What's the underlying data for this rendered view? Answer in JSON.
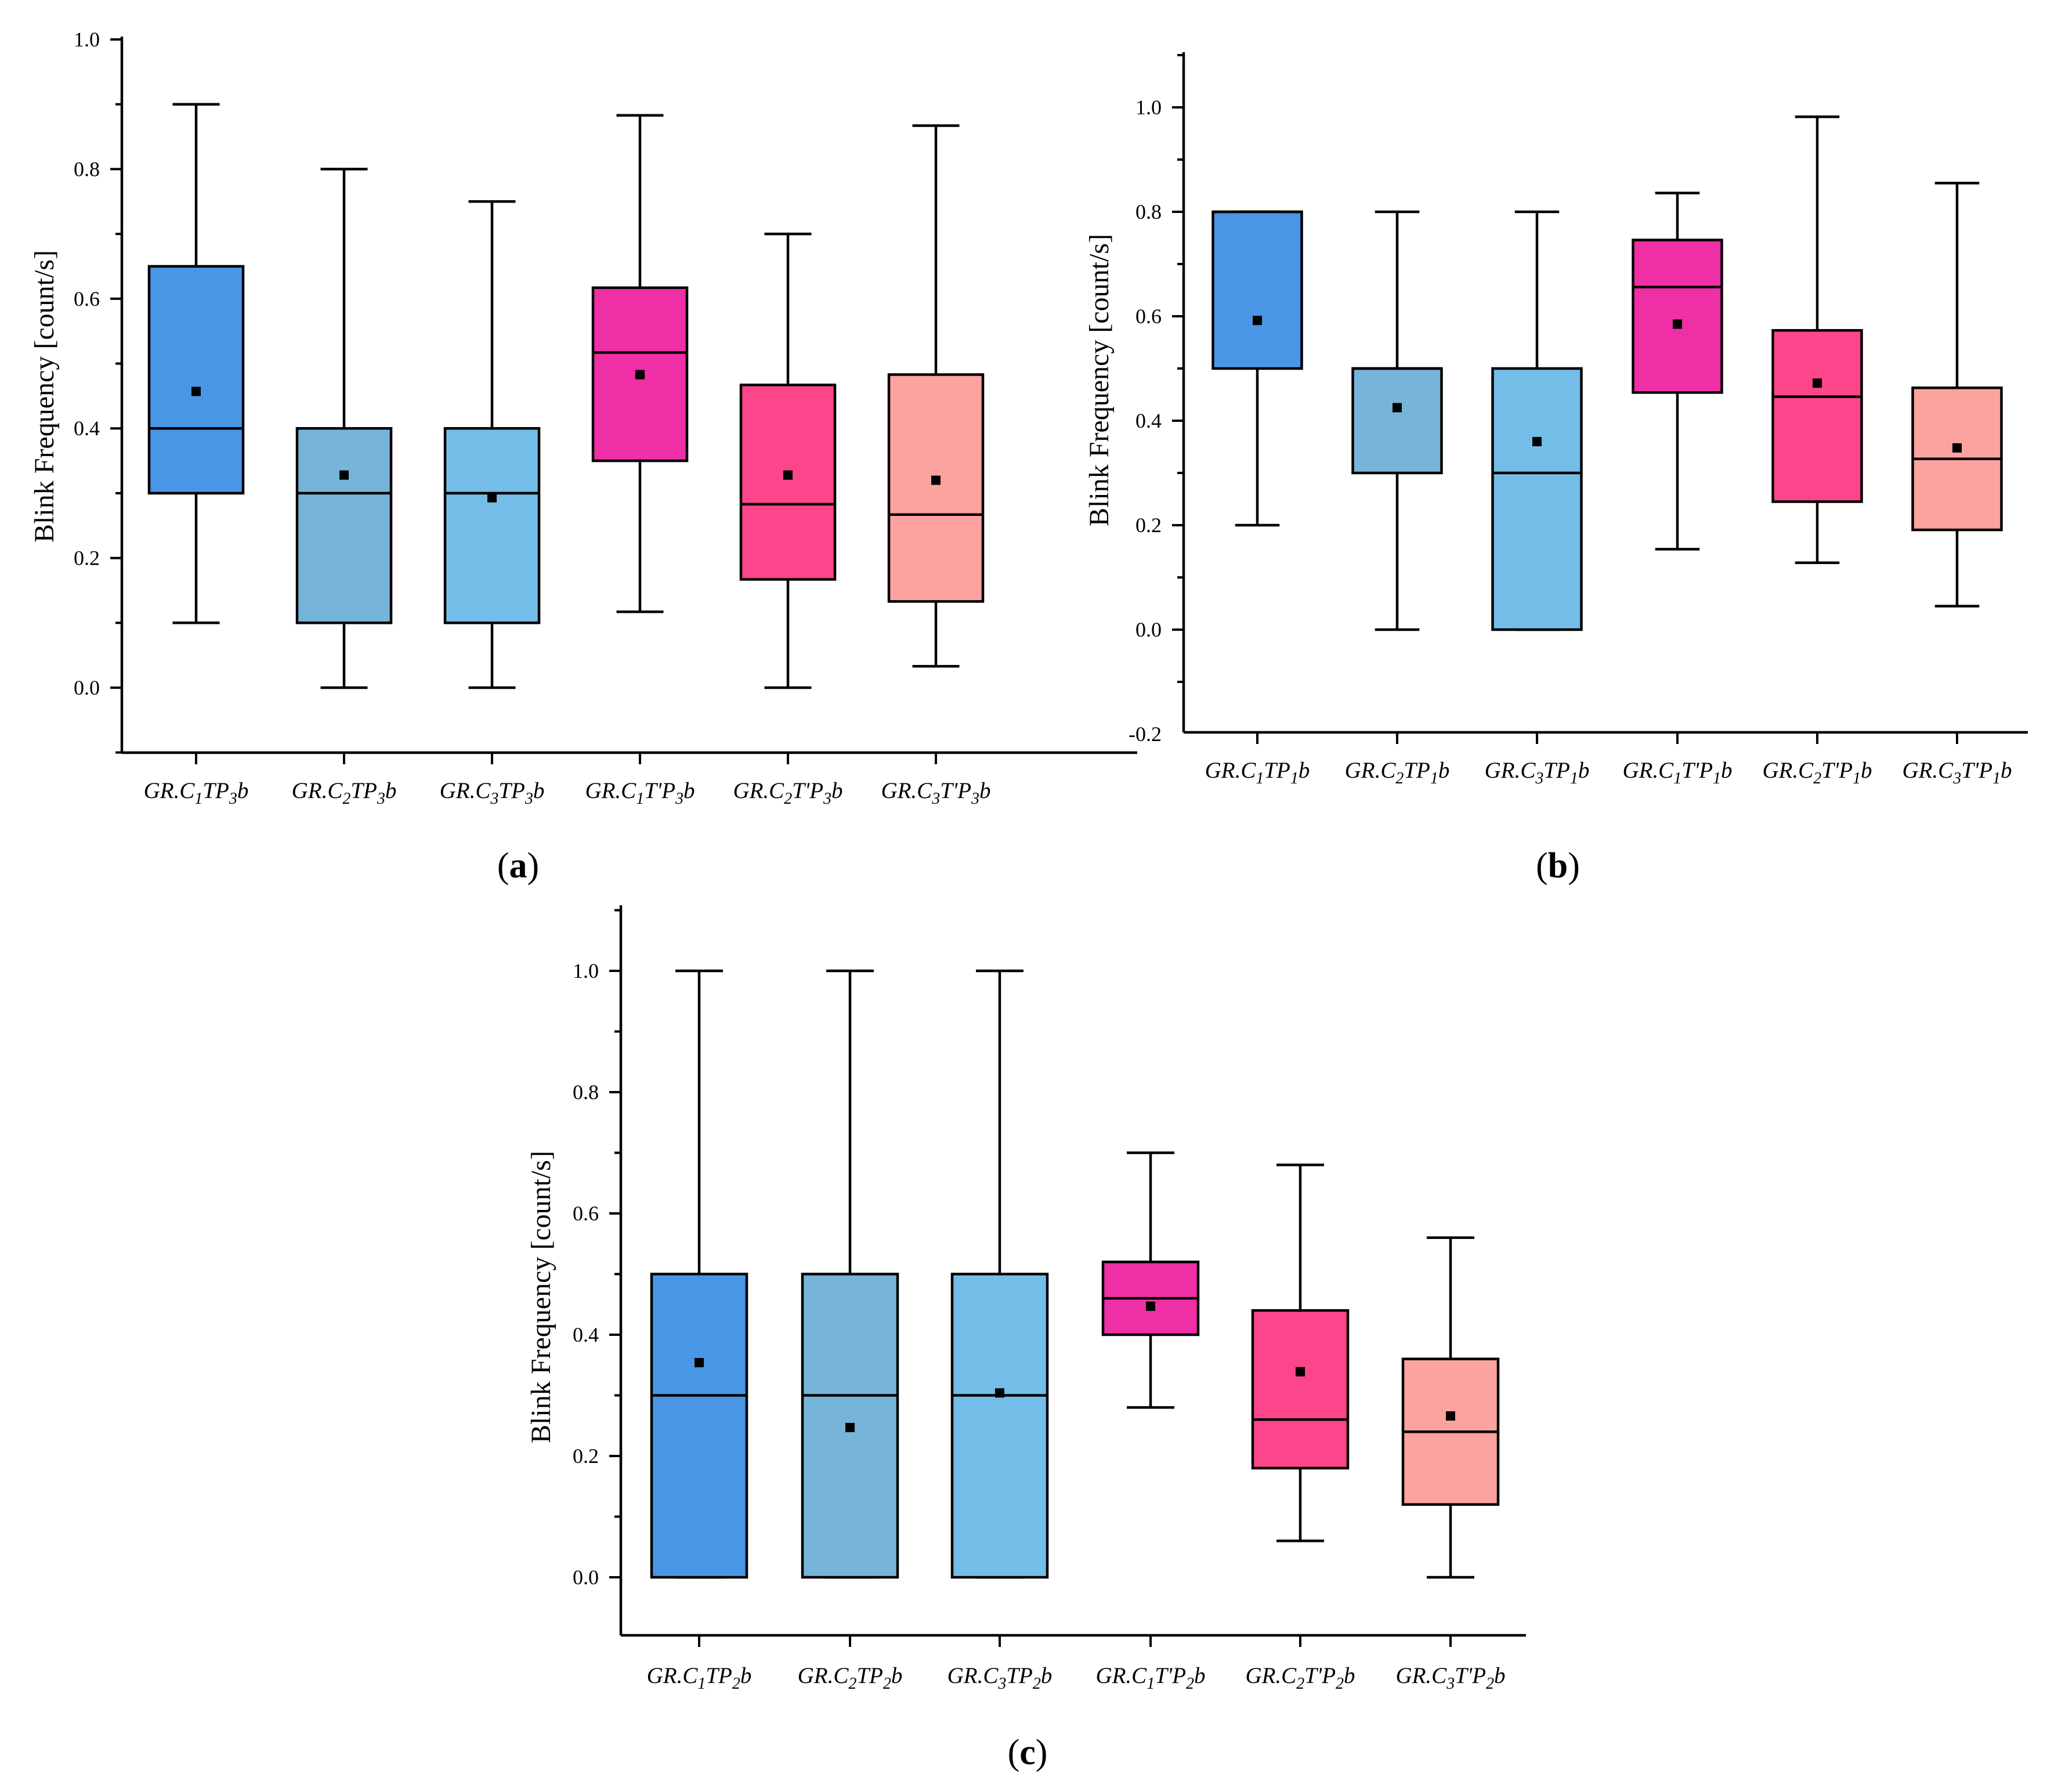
{
  "chart_data": [
    {
      "panel": "a",
      "type": "box",
      "ylabel": "Blink Frequency [count/s]",
      "ylim": [
        -0.1,
        1.0
      ],
      "yticks": [
        "0.0",
        "0.2",
        "0.4",
        "0.6",
        "0.8",
        "1.0"
      ],
      "ytick_values": [
        0.0,
        0.2,
        0.4,
        0.6,
        0.8,
        1.0
      ],
      "categories": [
        {
          "base": "GR.C",
          "sub1": "1",
          "mid": "TP",
          "sub2": "3",
          "end": "b"
        },
        {
          "base": "GR.C",
          "sub1": "2",
          "mid": "TP",
          "sub2": "3",
          "end": "b"
        },
        {
          "base": "GR.C",
          "sub1": "3",
          "mid": "TP",
          "sub2": "3",
          "end": "b"
        },
        {
          "base": "GR.C",
          "sub1": "1",
          "mid": "T'P",
          "sub2": "3",
          "end": "b"
        },
        {
          "base": "GR.C",
          "sub1": "2",
          "mid": "T'P",
          "sub2": "3",
          "end": "b"
        },
        {
          "base": "GR.C",
          "sub1": "3",
          "mid": "T'P",
          "sub2": "3",
          "end": "b"
        }
      ],
      "boxes": [
        {
          "min": 0.1,
          "q1": 0.3,
          "median": 0.4,
          "q3": 0.65,
          "max": 0.9,
          "mean": 0.457,
          "color": "#4a96e6"
        },
        {
          "min": 0.0,
          "q1": 0.1,
          "median": 0.3,
          "q3": 0.4,
          "max": 0.8,
          "mean": 0.328,
          "color": "#77b4d9"
        },
        {
          "min": 0.0,
          "q1": 0.1,
          "median": 0.3,
          "q3": 0.4,
          "max": 0.75,
          "mean": 0.293,
          "color": "#73bde8"
        },
        {
          "min": 0.117,
          "q1": 0.35,
          "median": 0.517,
          "q3": 0.617,
          "max": 0.883,
          "mean": 0.483,
          "color": "#ee2fa6"
        },
        {
          "min": 0.0,
          "q1": 0.167,
          "median": 0.283,
          "q3": 0.467,
          "max": 0.7,
          "mean": 0.328,
          "color": "#fc458a"
        },
        {
          "min": 0.033,
          "q1": 0.133,
          "median": 0.267,
          "q3": 0.483,
          "max": 0.867,
          "mean": 0.32,
          "color": "#fda39f"
        }
      ]
    },
    {
      "panel": "b",
      "type": "box",
      "ylabel": "Blink Frequency [count/s]",
      "ylim": [
        -0.2,
        1.1
      ],
      "yticks": [
        "-0.2",
        "0.0",
        "0.2",
        "0.4",
        "0.6",
        "0.8",
        "1.0"
      ],
      "ytick_values": [
        -0.2,
        0.0,
        0.2,
        0.4,
        0.6,
        0.8,
        1.0
      ],
      "categories": [
        {
          "base": "GR.C",
          "sub1": "1",
          "mid": "TP",
          "sub2": "1",
          "end": "b"
        },
        {
          "base": "GR.C",
          "sub1": "2",
          "mid": "TP",
          "sub2": "1",
          "end": "b"
        },
        {
          "base": "GR.C",
          "sub1": "3",
          "mid": "TP",
          "sub2": "1",
          "end": "b"
        },
        {
          "base": "GR.C",
          "sub1": "1",
          "mid": "T'P",
          "sub2": "1",
          "end": "b"
        },
        {
          "base": "GR.C",
          "sub1": "2",
          "mid": "T'P",
          "sub2": "1",
          "end": "b"
        },
        {
          "base": "GR.C",
          "sub1": "3",
          "mid": "T'P",
          "sub2": "1",
          "end": "b"
        }
      ],
      "boxes": [
        {
          "min": 0.2,
          "q1": 0.5,
          "median": 0.8,
          "q3": 0.8,
          "max": 0.8,
          "mean": 0.592,
          "color": "#4a96e6"
        },
        {
          "min": 0.0,
          "q1": 0.3,
          "median": 0.5,
          "q3": 0.5,
          "max": 0.8,
          "mean": 0.425,
          "color": "#77b4d9"
        },
        {
          "min": 0.0,
          "q1": 0.0,
          "median": 0.3,
          "q3": 0.5,
          "max": 0.8,
          "mean": 0.36,
          "color": "#73bde8"
        },
        {
          "min": 0.154,
          "q1": 0.454,
          "median": 0.656,
          "q3": 0.746,
          "max": 0.836,
          "mean": 0.585,
          "color": "#ee2fa6"
        },
        {
          "min": 0.128,
          "q1": 0.245,
          "median": 0.446,
          "q3": 0.573,
          "max": 0.982,
          "mean": 0.472,
          "color": "#fc458a"
        },
        {
          "min": 0.045,
          "q1": 0.191,
          "median": 0.327,
          "q3": 0.463,
          "max": 0.855,
          "mean": 0.348,
          "color": "#fda39f"
        }
      ]
    },
    {
      "panel": "c",
      "type": "box",
      "ylabel": "Blink Frequency [count/s]",
      "ylim": [
        -0.1,
        1.1
      ],
      "yticks": [
        "0.0",
        "0.2",
        "0.4",
        "0.6",
        "0.8",
        "1.0"
      ],
      "ytick_values": [
        0.0,
        0.2,
        0.4,
        0.6,
        0.8,
        1.0
      ],
      "categories": [
        {
          "base": "GR.C",
          "sub1": "1",
          "mid": "TP",
          "sub2": "2",
          "end": "b"
        },
        {
          "base": "GR.C",
          "sub1": "2",
          "mid": "TP",
          "sub2": "2",
          "end": "b"
        },
        {
          "base": "GR.C",
          "sub1": "3",
          "mid": "TP",
          "sub2": "2",
          "end": "b"
        },
        {
          "base": "GR.C",
          "sub1": "1",
          "mid": "T'P",
          "sub2": "2",
          "end": "b"
        },
        {
          "base": "GR.C",
          "sub1": "2",
          "mid": "T'P",
          "sub2": "2",
          "end": "b"
        },
        {
          "base": "GR.C",
          "sub1": "3",
          "mid": "T'P",
          "sub2": "2",
          "end": "b"
        }
      ],
      "boxes": [
        {
          "min": 0.0,
          "q1": 0.0,
          "median": 0.3,
          "q3": 0.5,
          "max": 1.0,
          "mean": 0.354,
          "color": "#4a96e6"
        },
        {
          "min": 0.0,
          "q1": 0.0,
          "median": 0.3,
          "q3": 0.5,
          "max": 1.0,
          "mean": 0.247,
          "color": "#77b4d9"
        },
        {
          "min": 0.0,
          "q1": 0.0,
          "median": 0.3,
          "q3": 0.5,
          "max": 1.0,
          "mean": 0.304,
          "color": "#73bde8"
        },
        {
          "min": 0.28,
          "q1": 0.4,
          "median": 0.46,
          "q3": 0.52,
          "max": 0.7,
          "mean": 0.447,
          "color": "#ee2fa6"
        },
        {
          "min": 0.06,
          "q1": 0.18,
          "median": 0.26,
          "q3": 0.44,
          "max": 0.68,
          "mean": 0.339,
          "color": "#fc458a"
        },
        {
          "min": 0.0,
          "q1": 0.12,
          "median": 0.24,
          "q3": 0.36,
          "max": 0.56,
          "mean": 0.266,
          "color": "#fda39f"
        }
      ]
    }
  ],
  "panel_labels": {
    "a": {
      "open": "(",
      "letter": "a",
      "close": ")"
    },
    "b": {
      "open": "(",
      "letter": "b",
      "close": ")"
    },
    "c": {
      "open": "(",
      "letter": "c",
      "close": ")"
    }
  }
}
